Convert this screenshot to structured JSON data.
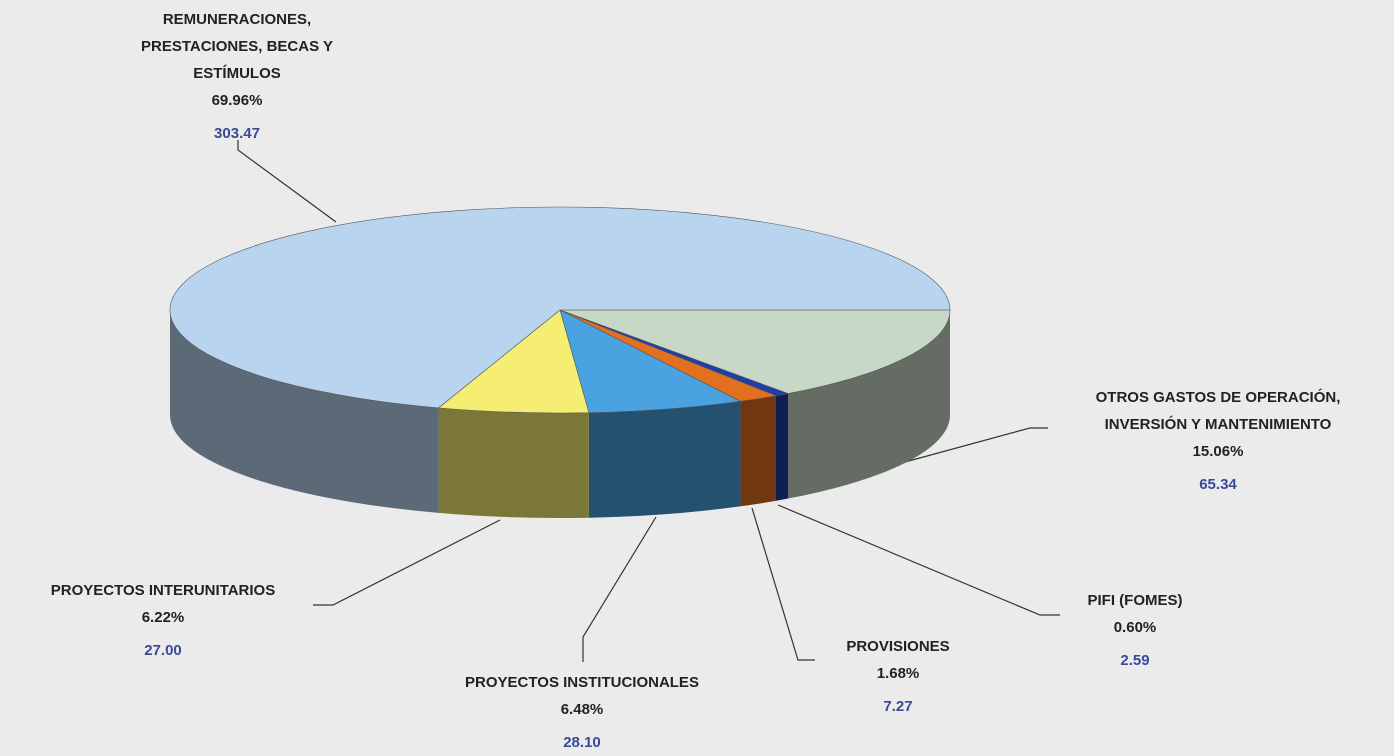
{
  "chart_data": {
    "type": "pie3d",
    "categories": [
      "OTROS GASTOS DE OPERACIÓN, INVERSIÓN Y MANTENIMIENTO",
      "PIFI (FOMES)",
      "PROVISIONES",
      "PROYECTOS INSTITUCIONALES",
      "PROYECTOS INTERUNITARIOS",
      "REMUNERACIONES, PRESTACIONES, BECAS Y ESTÍMULOS"
    ],
    "values": [
      15.06,
      0.6,
      1.68,
      6.48,
      6.22,
      69.96
    ],
    "value_labels": [
      "15.06%",
      "0.60%",
      "1.68%",
      "6.48%",
      "6.22%",
      "69.96%"
    ],
    "amounts": [
      "65.34",
      "2.59",
      "7.27",
      "28.10",
      "27.00",
      "303.47"
    ],
    "colors": [
      "#c8d8c6",
      "#1f3fa8",
      "#e2701e",
      "#4aa2e0",
      "#f6ee72",
      "#b9d4ee"
    ]
  }
}
